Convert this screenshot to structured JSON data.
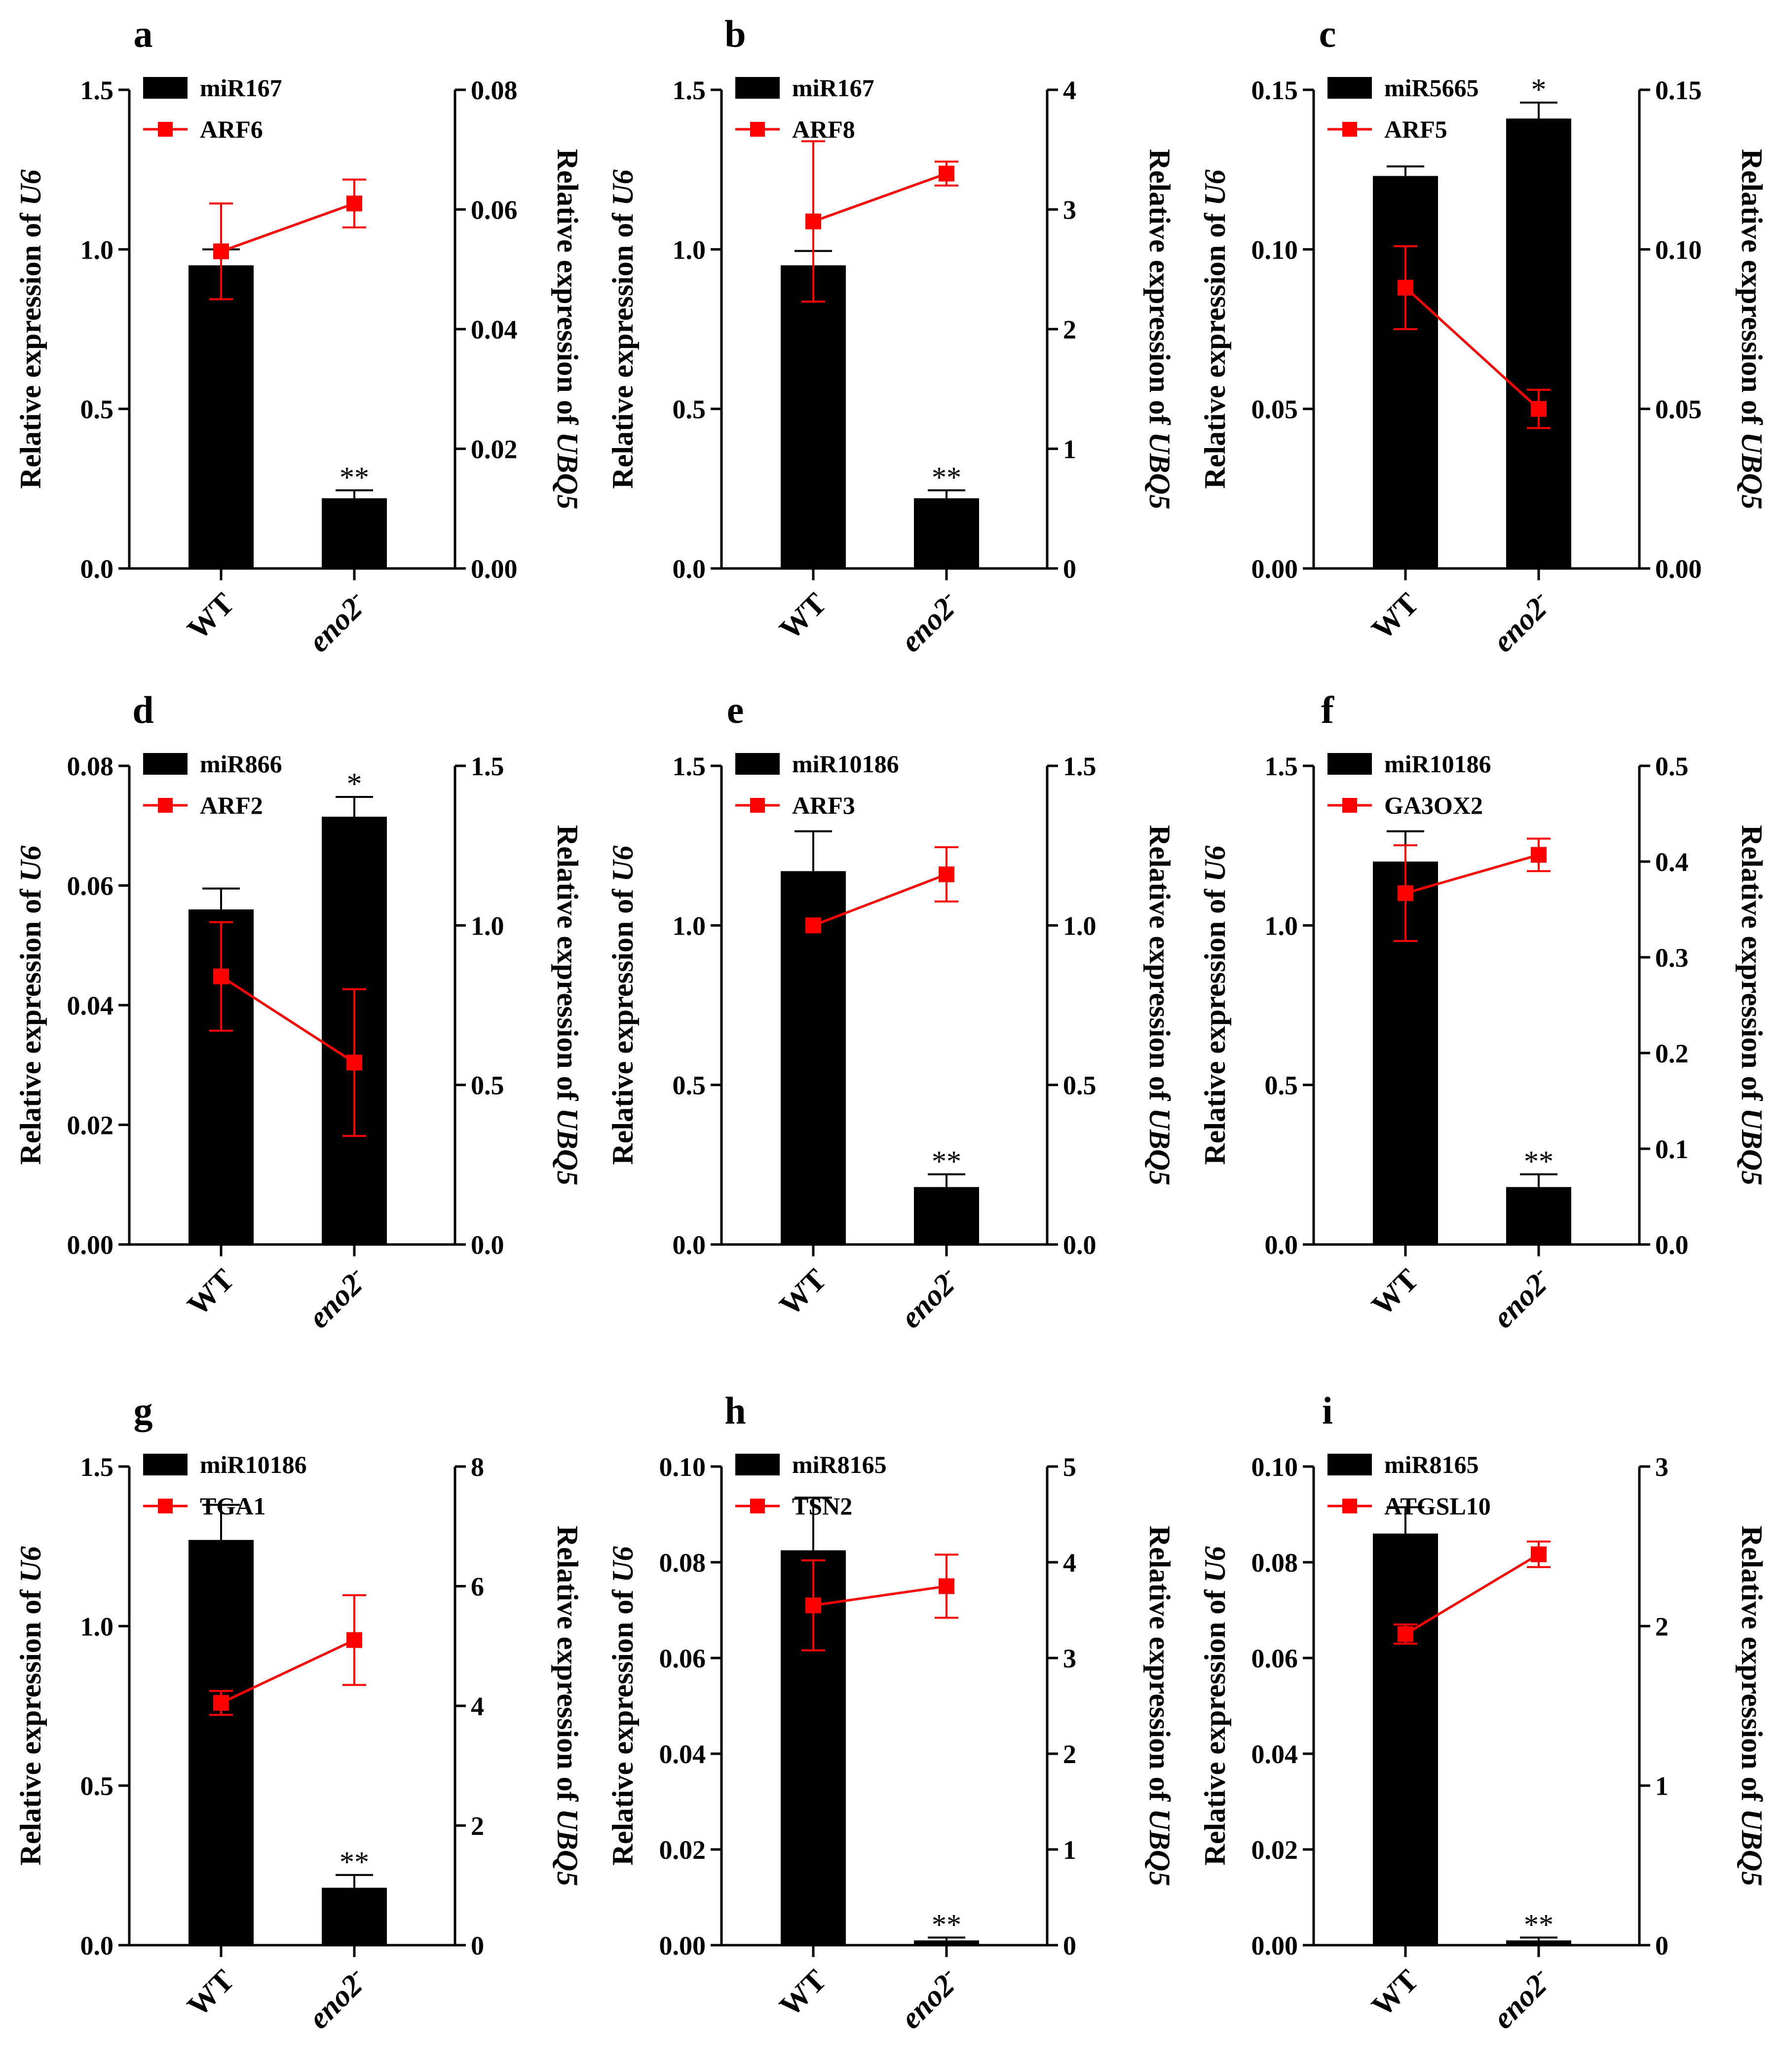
{
  "colors": {
    "bar": "#000000",
    "line": "#ff0000",
    "axis": "#000000"
  },
  "panel_grid": {
    "columns": 3,
    "rows": 3
  },
  "chart_data": [
    {
      "panel": "a",
      "type": "bar",
      "categories": [
        "WT",
        "eno2"
      ],
      "category_superscript": [
        "",
        "-"
      ],
      "left_axis": {
        "label_prefix": "Relative expression of ",
        "label_gene": "U6",
        "ylim": [
          0,
          1.5
        ],
        "ticks": [
          "0.0",
          "0.5",
          "1.0",
          "1.5"
        ]
      },
      "right_axis": {
        "label_prefix": "Relative expression of ",
        "label_gene": "UBQ5",
        "ylim": [
          0,
          0.08
        ],
        "ticks": [
          "0.00",
          "0.02",
          "0.04",
          "0.06",
          "0.08"
        ]
      },
      "bar_series": {
        "name": "miR167",
        "values": [
          0.95,
          0.22
        ],
        "errors": [
          0.05,
          0.025
        ],
        "sig": [
          "",
          "**"
        ]
      },
      "line_series": {
        "name": "ARF6",
        "values": [
          0.053,
          0.061
        ],
        "errors": [
          0.008,
          0.004
        ],
        "sig": [
          "",
          ""
        ]
      }
    },
    {
      "panel": "b",
      "type": "bar",
      "categories": [
        "WT",
        "eno2"
      ],
      "category_superscript": [
        "",
        "-"
      ],
      "left_axis": {
        "label_prefix": "Relative expression of ",
        "label_gene": "U6",
        "ylim": [
          0,
          1.5
        ],
        "ticks": [
          "0.0",
          "0.5",
          "1.0",
          "1.5"
        ]
      },
      "right_axis": {
        "label_prefix": "Relative expression of ",
        "label_gene": "UBQ5",
        "ylim": [
          0,
          4
        ],
        "ticks": [
          "0",
          "1",
          "2",
          "3",
          "4"
        ]
      },
      "bar_series": {
        "name": "miR167",
        "values": [
          0.95,
          0.22
        ],
        "errors": [
          0.045,
          0.025
        ],
        "sig": [
          "",
          "**"
        ]
      },
      "line_series": {
        "name": "ARF8",
        "values": [
          2.9,
          3.3
        ],
        "errors": [
          0.67,
          0.1
        ],
        "sig": [
          "",
          ""
        ]
      }
    },
    {
      "panel": "c",
      "type": "bar",
      "categories": [
        "WT",
        "eno2"
      ],
      "category_superscript": [
        "",
        "-"
      ],
      "left_axis": {
        "label_prefix": "Relative expression of ",
        "label_gene": "U6",
        "ylim": [
          0,
          0.15
        ],
        "ticks": [
          "0.00",
          "0.05",
          "0.10",
          "0.15"
        ]
      },
      "right_axis": {
        "label_prefix": "Relative expression of ",
        "label_gene": "UBQ5",
        "ylim": [
          0,
          0.15
        ],
        "ticks": [
          "0.00",
          "0.05",
          "0.10",
          "0.15"
        ]
      },
      "bar_series": {
        "name": "miR5665",
        "values": [
          0.123,
          0.141
        ],
        "errors": [
          0.003,
          0.005
        ],
        "sig": [
          "",
          "*"
        ]
      },
      "line_series": {
        "name": "ARF5",
        "values": [
          0.088,
          0.05
        ],
        "errors": [
          0.013,
          0.006
        ],
        "sig": [
          "",
          ""
        ]
      }
    },
    {
      "panel": "d",
      "type": "bar",
      "categories": [
        "WT",
        "eno2"
      ],
      "category_superscript": [
        "",
        "-"
      ],
      "left_axis": {
        "label_prefix": "Relative expression of ",
        "label_gene": "U6",
        "ylim": [
          0,
          0.08
        ],
        "ticks": [
          "0.00",
          "0.02",
          "0.04",
          "0.06",
          "0.08"
        ]
      },
      "right_axis": {
        "label_prefix": "Relative expression of ",
        "label_gene": "UBQ5",
        "ylim": [
          0,
          1.5
        ],
        "ticks": [
          "0.0",
          "0.5",
          "1.0",
          "1.5"
        ]
      },
      "bar_series": {
        "name": "miR866",
        "values": [
          0.056,
          0.0715
        ],
        "errors": [
          0.0035,
          0.0033
        ],
        "sig": [
          "",
          "*"
        ]
      },
      "line_series": {
        "name": "ARF2",
        "values": [
          0.84,
          0.57
        ],
        "errors": [
          0.17,
          0.23
        ],
        "sig": [
          "",
          ""
        ]
      }
    },
    {
      "panel": "e",
      "type": "bar",
      "categories": [
        "WT",
        "eno2"
      ],
      "category_superscript": [
        "",
        "-"
      ],
      "left_axis": {
        "label_prefix": "Relative expression of ",
        "label_gene": "U6",
        "ylim": [
          0,
          1.5
        ],
        "ticks": [
          "0.0",
          "0.5",
          "1.0",
          "1.5"
        ]
      },
      "right_axis": {
        "label_prefix": "Relative expression of ",
        "label_gene": "UBQ5",
        "ylim": [
          0,
          1.5
        ],
        "ticks": [
          "0.0",
          "0.5",
          "1.0",
          "1.5"
        ]
      },
      "bar_series": {
        "name": "miR10186",
        "values": [
          1.17,
          0.18
        ],
        "errors": [
          0.125,
          0.04
        ],
        "sig": [
          "",
          "**"
        ]
      },
      "line_series": {
        "name": "ARF3",
        "values": [
          1.0,
          1.16
        ],
        "errors": [
          0.0,
          0.085
        ],
        "sig": [
          "",
          ""
        ]
      }
    },
    {
      "panel": "f",
      "type": "bar",
      "categories": [
        "WT",
        "eno2"
      ],
      "category_superscript": [
        "",
        "-"
      ],
      "left_axis": {
        "label_prefix": "Relative expression of ",
        "label_gene": "U6",
        "ylim": [
          0,
          1.5
        ],
        "ticks": [
          "0.0",
          "0.5",
          "1.0",
          "1.5"
        ]
      },
      "right_axis": {
        "label_prefix": "Relative expression of ",
        "label_gene": "UBQ5",
        "ylim": [
          0,
          0.5
        ],
        "ticks": [
          "0.0",
          "0.1",
          "0.2",
          "0.3",
          "0.4",
          "0.5"
        ]
      },
      "bar_series": {
        "name": "miR10186",
        "values": [
          1.2,
          0.18
        ],
        "errors": [
          0.095,
          0.04
        ],
        "sig": [
          "",
          "**"
        ]
      },
      "line_series": {
        "name": "GA3OX2",
        "values": [
          0.367,
          0.407
        ],
        "errors": [
          0.05,
          0.017
        ],
        "sig": [
          "",
          ""
        ]
      }
    },
    {
      "panel": "g",
      "type": "bar",
      "categories": [
        "WT",
        "eno2"
      ],
      "category_superscript": [
        "",
        "-"
      ],
      "left_axis": {
        "label_prefix": "Relative expression of ",
        "label_gene": "U6",
        "ylim": [
          0,
          1.5
        ],
        "ticks": [
          "0.0",
          "0.5",
          "1.0",
          "1.5"
        ]
      },
      "right_axis": {
        "label_prefix": "Relative expression of ",
        "label_gene": "UBQ5",
        "ylim": [
          0,
          8
        ],
        "ticks": [
          "0",
          "2",
          "4",
          "6",
          "8"
        ]
      },
      "bar_series": {
        "name": "miR10186",
        "values": [
          1.27,
          0.18
        ],
        "errors": [
          0.11,
          0.04
        ],
        "sig": [
          "",
          "**"
        ]
      },
      "line_series": {
        "name": "TGA1",
        "values": [
          4.05,
          5.1
        ],
        "errors": [
          0.2,
          0.75
        ],
        "sig": [
          "",
          ""
        ]
      }
    },
    {
      "panel": "h",
      "type": "bar",
      "categories": [
        "WT",
        "eno2"
      ],
      "category_superscript": [
        "",
        "-"
      ],
      "left_axis": {
        "label_prefix": "Relative expression of ",
        "label_gene": "U6",
        "ylim": [
          0,
          0.1
        ],
        "ticks": [
          "0.00",
          "0.02",
          "0.04",
          "0.06",
          "0.08",
          "0.10"
        ]
      },
      "right_axis": {
        "label_prefix": "Relative expression of ",
        "label_gene": "UBQ5",
        "ylim": [
          0,
          5
        ],
        "ticks": [
          "0",
          "1",
          "2",
          "3",
          "4",
          "5"
        ]
      },
      "bar_series": {
        "name": "miR8165",
        "values": [
          0.0825,
          0.001
        ],
        "errors": [
          0.011,
          0.0006
        ],
        "sig": [
          "",
          "**"
        ]
      },
      "line_series": {
        "name": "TSN2",
        "values": [
          3.55,
          3.75
        ],
        "errors": [
          0.47,
          0.33
        ],
        "sig": [
          "",
          ""
        ]
      }
    },
    {
      "panel": "i",
      "type": "bar",
      "categories": [
        "WT",
        "eno2"
      ],
      "category_superscript": [
        "",
        "-"
      ],
      "left_axis": {
        "label_prefix": "Relative expression of ",
        "label_gene": "U6",
        "ylim": [
          0,
          0.1
        ],
        "ticks": [
          "0.00",
          "0.02",
          "0.04",
          "0.06",
          "0.08",
          "0.10"
        ]
      },
      "right_axis": {
        "label_prefix": "Relative expression of ",
        "label_gene": "UBQ5",
        "ylim": [
          0,
          3
        ],
        "ticks": [
          "0",
          "1",
          "2",
          "3"
        ]
      },
      "bar_series": {
        "name": "miR8165",
        "values": [
          0.086,
          0.001
        ],
        "errors": [
          0.0055,
          0.0006
        ],
        "sig": [
          "",
          "**"
        ]
      },
      "line_series": {
        "name": "ATGSL10",
        "values": [
          1.95,
          2.45
        ],
        "errors": [
          0.06,
          0.08
        ],
        "sig": [
          "",
          ""
        ]
      }
    }
  ]
}
